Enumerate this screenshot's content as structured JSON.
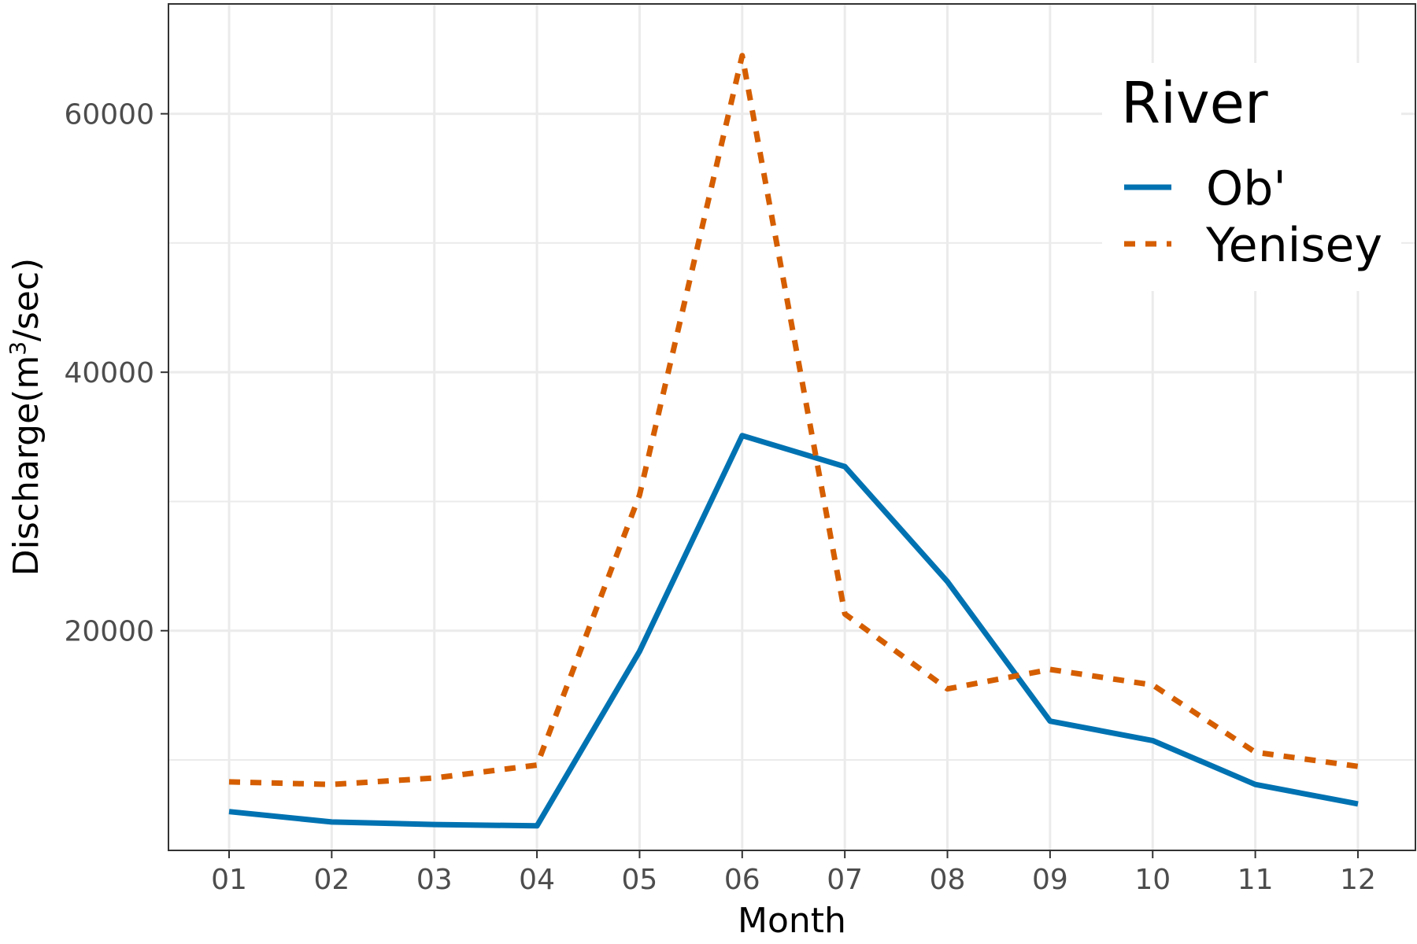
{
  "chart_data": {
    "type": "line",
    "xlabel": "Month",
    "ylabel_main": "Discharge(m",
    "ylabel_sup": "3",
    "ylabel_tail": "/sec)",
    "categories": [
      "01",
      "02",
      "03",
      "04",
      "05",
      "06",
      "07",
      "08",
      "09",
      "10",
      "11",
      "12"
    ],
    "ylim": [
      3000,
      68500
    ],
    "y_ticks": [
      20000,
      40000,
      60000
    ],
    "y_tick_labels": [
      "20000",
      "40000",
      "60000"
    ],
    "y_minor_ticks": [
      10000,
      30000,
      50000
    ],
    "grid": true,
    "legend": {
      "title": "River",
      "position": "top-right"
    },
    "series": [
      {
        "name": "Ob'",
        "color": "#0072B2",
        "dash": "solid",
        "values": [
          6000,
          5200,
          5000,
          4900,
          18400,
          35100,
          32700,
          23800,
          13000,
          11500,
          8100,
          6600
        ]
      },
      {
        "name": "Yenisey",
        "color": "#D55E00",
        "dash": "dotted",
        "values": [
          8300,
          8100,
          8600,
          9600,
          30500,
          64500,
          21300,
          15500,
          17000,
          15800,
          10600,
          9500
        ]
      }
    ]
  }
}
